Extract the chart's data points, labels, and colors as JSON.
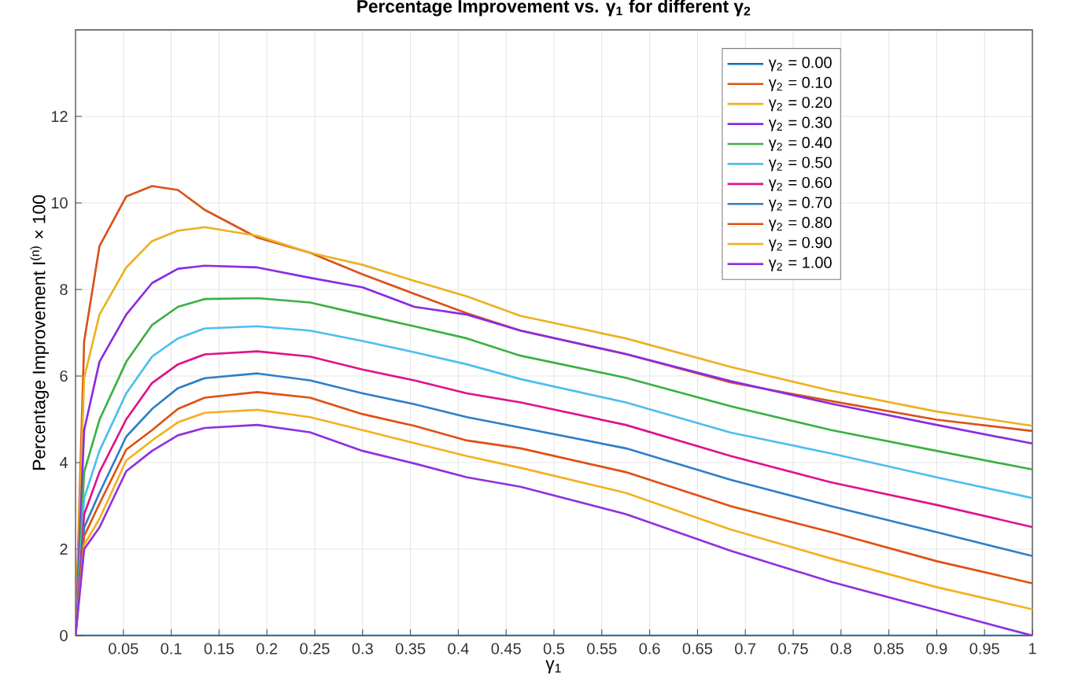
{
  "chart_data": {
    "type": "line",
    "title": "Percentage Improvement vs. γ$_{1}$ for different γ$_{2}$",
    "xlabel": "γ$_{1}$",
    "ylabel": "Percentage Improvement  I$^{(n)}$ × 100",
    "xlim": [
      0,
      1
    ],
    "ylim": [
      0,
      14
    ],
    "xticks": [
      0.05,
      0.1,
      0.15,
      0.2,
      0.25,
      0.3,
      0.35,
      0.4,
      0.45,
      0.5,
      0.55,
      0.6,
      0.65,
      0.7,
      0.75,
      0.8,
      0.85,
      0.9,
      0.95,
      1
    ],
    "yticks": [
      0,
      2,
      4,
      6,
      8,
      10,
      12
    ],
    "grid": true,
    "legend": "top right",
    "line_style": "solid",
    "marker": "none",
    "series": [
      {
        "name": "γ$_{2}$ = 0.00",
        "color": "#0072bd",
        "x": [
          0,
          1
        ],
        "values": [
          0,
          0
        ]
      },
      {
        "name": "γ$_{2}$ = 0.10",
        "color": "#d95319",
        "x": [
          0,
          0.009,
          0.025,
          0.053,
          0.08,
          0.107,
          0.135,
          0.19,
          0.245,
          0.3,
          0.354,
          0.409,
          0.465,
          0.575,
          0.685,
          0.79,
          0.9,
          1.0
        ],
        "values": [
          0,
          6.8,
          9.0,
          10.15,
          10.39,
          10.3,
          9.84,
          9.2,
          8.85,
          8.35,
          7.9,
          7.45,
          7.05,
          6.51,
          5.85,
          5.42,
          4.99,
          4.73
        ]
      },
      {
        "name": "γ$_{2}$ = 0.20",
        "color": "#edb120",
        "x": [
          0,
          0.009,
          0.025,
          0.053,
          0.08,
          0.107,
          0.135,
          0.19,
          0.245,
          0.3,
          0.354,
          0.409,
          0.465,
          0.575,
          0.685,
          0.79,
          0.9,
          1.0
        ],
        "values": [
          0,
          5.96,
          7.42,
          8.51,
          9.12,
          9.36,
          9.44,
          9.24,
          8.85,
          8.57,
          8.2,
          7.84,
          7.39,
          6.87,
          6.21,
          5.66,
          5.18,
          4.85
        ]
      },
      {
        "name": "γ$_{2}$ = 0.30",
        "color": "#8b2be2",
        "x": [
          0,
          0.009,
          0.025,
          0.053,
          0.08,
          0.107,
          0.135,
          0.19,
          0.245,
          0.3,
          0.354,
          0.409,
          0.465,
          0.575,
          0.685,
          0.79,
          0.9,
          1.0
        ],
        "values": [
          0,
          4.75,
          6.33,
          7.42,
          8.15,
          8.48,
          8.55,
          8.51,
          8.27,
          8.05,
          7.6,
          7.42,
          7.05,
          6.51,
          5.88,
          5.36,
          4.87,
          4.44
        ]
      },
      {
        "name": "γ$_{2}$ = 0.40",
        "color": "#3cb043",
        "x": [
          0,
          0.009,
          0.025,
          0.053,
          0.08,
          0.107,
          0.135,
          0.19,
          0.245,
          0.3,
          0.354,
          0.409,
          0.465,
          0.575,
          0.685,
          0.79,
          0.9,
          1.0
        ],
        "values": [
          0,
          3.78,
          4.99,
          6.33,
          7.18,
          7.6,
          7.78,
          7.8,
          7.7,
          7.42,
          7.15,
          6.87,
          6.47,
          5.96,
          5.3,
          4.75,
          4.27,
          3.84
        ]
      },
      {
        "name": "γ$_{2}$ = 0.50",
        "color": "#4dbeee",
        "x": [
          0,
          0.009,
          0.025,
          0.053,
          0.08,
          0.107,
          0.135,
          0.19,
          0.245,
          0.3,
          0.354,
          0.409,
          0.465,
          0.575,
          0.685,
          0.79,
          0.9,
          1.0
        ],
        "values": [
          0,
          3.18,
          4.27,
          5.6,
          6.45,
          6.87,
          7.1,
          7.15,
          7.05,
          6.81,
          6.55,
          6.27,
          5.93,
          5.39,
          4.69,
          4.21,
          3.66,
          3.18
        ]
      },
      {
        "name": "γ$_{2}$ = 0.60",
        "color": "#e0128a",
        "x": [
          0,
          0.009,
          0.025,
          0.053,
          0.08,
          0.107,
          0.135,
          0.19,
          0.245,
          0.3,
          0.354,
          0.409,
          0.465,
          0.575,
          0.685,
          0.79,
          0.9,
          1.0
        ],
        "values": [
          0,
          2.8,
          3.78,
          5.0,
          5.84,
          6.27,
          6.5,
          6.57,
          6.45,
          6.15,
          5.9,
          5.6,
          5.39,
          4.87,
          4.15,
          3.54,
          3.02,
          2.51
        ]
      },
      {
        "name": "γ$_{2}$ = 0.70",
        "color": "#2e7fc7",
        "x": [
          0,
          0.009,
          0.025,
          0.053,
          0.08,
          0.107,
          0.135,
          0.19,
          0.245,
          0.3,
          0.354,
          0.409,
          0.465,
          0.575,
          0.685,
          0.79,
          0.9,
          1.0
        ],
        "values": [
          0,
          2.5,
          3.3,
          4.6,
          5.24,
          5.72,
          5.95,
          6.06,
          5.9,
          5.6,
          5.35,
          5.05,
          4.81,
          4.33,
          3.6,
          2.99,
          2.39,
          1.84
        ]
      },
      {
        "name": "γ$_{2}$ = 0.80",
        "color": "#e05010",
        "x": [
          0,
          0.009,
          0.025,
          0.053,
          0.08,
          0.107,
          0.135,
          0.19,
          0.245,
          0.3,
          0.354,
          0.409,
          0.465,
          0.575,
          0.685,
          0.79,
          0.9,
          1.0
        ],
        "values": [
          0,
          2.3,
          3.05,
          4.3,
          4.75,
          5.24,
          5.5,
          5.63,
          5.5,
          5.12,
          4.85,
          4.51,
          4.33,
          3.78,
          2.99,
          2.39,
          1.72,
          1.21
        ]
      },
      {
        "name": "γ$_{2}$ = 0.90",
        "color": "#f5b020",
        "x": [
          0,
          0.009,
          0.025,
          0.053,
          0.08,
          0.107,
          0.135,
          0.19,
          0.245,
          0.3,
          0.354,
          0.409,
          0.465,
          0.575,
          0.685,
          0.79,
          0.9,
          1.0
        ],
        "values": [
          0,
          2.1,
          2.7,
          4.05,
          4.51,
          4.93,
          5.15,
          5.22,
          5.05,
          4.75,
          4.45,
          4.15,
          3.88,
          3.3,
          2.45,
          1.78,
          1.12,
          0.61
        ]
      },
      {
        "name": "γ$_{2}$ = 1.00",
        "color": "#9030e0",
        "x": [
          0,
          0.009,
          0.025,
          0.053,
          0.08,
          0.107,
          0.135,
          0.19,
          0.245,
          0.3,
          0.354,
          0.409,
          0.465,
          0.575,
          0.685,
          0.79,
          0.9,
          1.0
        ],
        "values": [
          0,
          2.0,
          2.5,
          3.8,
          4.27,
          4.63,
          4.8,
          4.87,
          4.7,
          4.27,
          3.98,
          3.66,
          3.44,
          2.81,
          1.96,
          1.24,
          0.59,
          0
        ]
      }
    ]
  }
}
